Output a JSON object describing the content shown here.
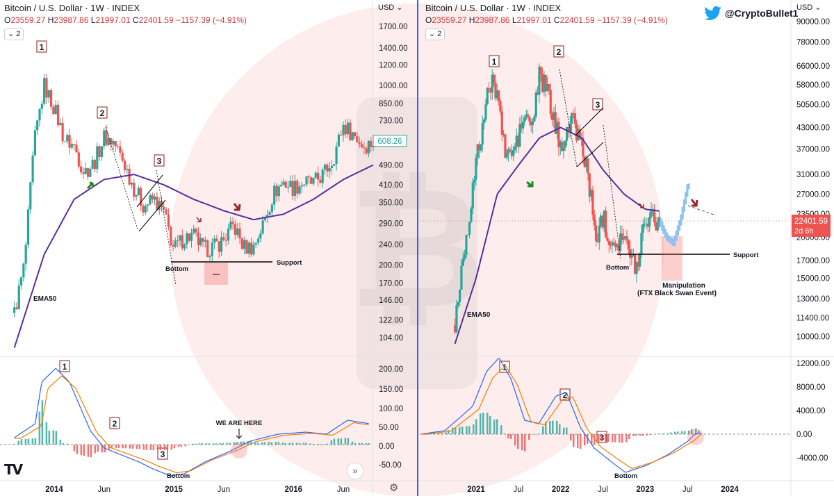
{
  "header": {
    "title": "Bitcoin / U.S. Dollar · 1W · INDEX",
    "ohlc": {
      "o_label": "O",
      "o": "23559.27",
      "h_label": "H",
      "h": "23987.86",
      "l_label": "L",
      "l": "21997.01",
      "c_label": "C",
      "c": "22401.59",
      "change": "−1157.39 (−4.91%)"
    },
    "indicator_chip": "2",
    "currency_label": "USD",
    "twitter_handle": "@CryptoBullet1",
    "watermark": "TV",
    "nav_icon": "chevron-right-double-icon",
    "settings_icon": "gear-icon"
  },
  "colors": {
    "up": "#26a69a",
    "down": "#ef5350",
    "ema": "#5b2c9e",
    "macd": "#2962ff",
    "signal": "#f57c00",
    "divider": "#2962ff",
    "bg_watermark": "#ef5350"
  },
  "chart_data": [
    {
      "panel": "left",
      "type": "candlestick",
      "scale": "log",
      "x_ticks": [
        "2014",
        "Jun",
        "2015",
        "Jun",
        "2016",
        "Jun"
      ],
      "y_ticks": [
        "1700.00",
        "1400.00",
        "1200.00",
        "1000.00",
        "850.00",
        "730.00",
        "608.26",
        "490.00",
        "410.00",
        "350.00",
        "290.00",
        "240.00",
        "200.00",
        "170.00",
        "146.00",
        "122.00",
        "104.00"
      ],
      "last_price_label": "608.26",
      "ema_label": "EMA50",
      "annotations": [
        "1",
        "2",
        "3",
        "Bottom",
        "Support"
      ],
      "series_path": [
        [
          "2013-09",
          130
        ],
        [
          "2013-10",
          200
        ],
        [
          "2013-11",
          600
        ],
        [
          "2013-12",
          1000
        ],
        [
          "2014-01",
          820
        ],
        [
          "2014-02",
          620
        ],
        [
          "2014-03",
          580
        ],
        [
          "2014-04",
          460
        ],
        [
          "2014-05",
          500
        ],
        [
          "2014-06",
          630
        ],
        [
          "2014-07",
          600
        ],
        [
          "2014-08",
          500
        ],
        [
          "2014-09",
          400
        ],
        [
          "2014-10",
          340
        ],
        [
          "2014-11",
          360
        ],
        [
          "2014-12",
          320
        ],
        [
          "2015-01",
          230
        ],
        [
          "2015-02",
          255
        ],
        [
          "2015-03",
          260
        ],
        [
          "2015-04",
          230
        ],
        [
          "2015-05",
          235
        ],
        [
          "2015-06",
          250
        ],
        [
          "2015-07",
          285
        ],
        [
          "2015-08",
          235
        ],
        [
          "2015-09",
          235
        ],
        [
          "2015-10",
          290
        ],
        [
          "2015-11",
          380
        ],
        [
          "2015-12",
          420
        ],
        [
          "2016-01",
          400
        ],
        [
          "2016-02",
          420
        ],
        [
          "2016-03",
          415
        ],
        [
          "2016-04",
          450
        ],
        [
          "2016-05",
          520
        ],
        [
          "2016-06",
          700
        ],
        [
          "2016-07",
          650
        ],
        [
          "2016-08",
          580
        ],
        [
          "2016-09",
          600
        ]
      ],
      "ema": [
        [
          "2013-09",
          95
        ],
        [
          "2013-12",
          220
        ],
        [
          "2014-03",
          360
        ],
        [
          "2014-06",
          430
        ],
        [
          "2014-09",
          450
        ],
        [
          "2014-12",
          410
        ],
        [
          "2015-03",
          360
        ],
        [
          "2015-06",
          325
        ],
        [
          "2015-09",
          300
        ],
        [
          "2015-12",
          315
        ],
        [
          "2016-03",
          360
        ],
        [
          "2016-06",
          430
        ],
        [
          "2016-09",
          490
        ]
      ],
      "macd_ticks": [
        "200.00",
        "150.00",
        "100.00",
        "50.00",
        "0.00",
        "-50.00"
      ],
      "macd_annotations": [
        "1",
        "2",
        "3",
        "Bottom",
        "WE ARE HERE"
      ]
    },
    {
      "panel": "right",
      "type": "candlestick",
      "scale": "log",
      "x_ticks": [
        "2021",
        "Jul",
        "2022",
        "Jul",
        "2023",
        "Jul",
        "2024"
      ],
      "y_ticks": [
        "90000.00",
        "78000.00",
        "66000.00",
        "58000.00",
        "50500.00",
        "43000.00",
        "37000.00",
        "31000.00",
        "27000.00",
        "23500.00",
        "20000.00",
        "17000.00",
        "15000.00",
        "13000.00",
        "11400.00",
        "10000.00"
      ],
      "last_price_label": "22401.59",
      "countdown_label": "2d 6h",
      "ema_label": "EMA50",
      "annotations": [
        "1",
        "2",
        "3",
        "Bottom",
        "Support",
        "Manipulation",
        "(FTX Black Swan Event)"
      ],
      "series_path": [
        [
          "2020-10",
          10800
        ],
        [
          "2020-11",
          16500
        ],
        [
          "2020-12",
          23000
        ],
        [
          "2021-01",
          33000
        ],
        [
          "2021-02",
          45000
        ],
        [
          "2021-03",
          58000
        ],
        [
          "2021-04",
          57000
        ],
        [
          "2021-05",
          37000
        ],
        [
          "2021-06",
          35000
        ],
        [
          "2021-07",
          40000
        ],
        [
          "2021-08",
          47000
        ],
        [
          "2021-09",
          43000
        ],
        [
          "2021-10",
          61000
        ],
        [
          "2021-11",
          57000
        ],
        [
          "2021-12",
          46000
        ],
        [
          "2022-01",
          38000
        ],
        [
          "2022-02",
          43000
        ],
        [
          "2022-03",
          45000
        ],
        [
          "2022-04",
          38000
        ],
        [
          "2022-05",
          31000
        ],
        [
          "2022-06",
          19500
        ],
        [
          "2022-07",
          23300
        ],
        [
          "2022-08",
          20000
        ],
        [
          "2022-09",
          19400
        ],
        [
          "2022-10",
          20500
        ],
        [
          "2022-11",
          17000
        ],
        [
          "2022-12",
          16500
        ],
        [
          "2023-01",
          23000
        ],
        [
          "2023-02",
          23500
        ],
        [
          "2023-03",
          22400
        ]
      ],
      "ema": [
        [
          "2020-10",
          9500
        ],
        [
          "2021-01",
          15000
        ],
        [
          "2021-04",
          27000
        ],
        [
          "2021-07",
          33000
        ],
        [
          "2021-10",
          40000
        ],
        [
          "2022-01",
          43000
        ],
        [
          "2022-04",
          40000
        ],
        [
          "2022-07",
          32000
        ],
        [
          "2022-10",
          27000
        ],
        [
          "2023-01",
          24300
        ],
        [
          "2023-03",
          24000
        ]
      ],
      "projection": [
        [
          "2023-03",
          22400
        ],
        [
          "2023-04",
          20000
        ],
        [
          "2023-05",
          19200
        ],
        [
          "2023-06",
          22500
        ],
        [
          "2023-07",
          28500
        ]
      ],
      "macd_ticks": [
        "12000.00",
        "8000.00",
        "4000.00",
        "0.00",
        "-4000.00"
      ],
      "macd_annotations": [
        "1",
        "2",
        "3",
        "Bottom"
      ]
    }
  ]
}
